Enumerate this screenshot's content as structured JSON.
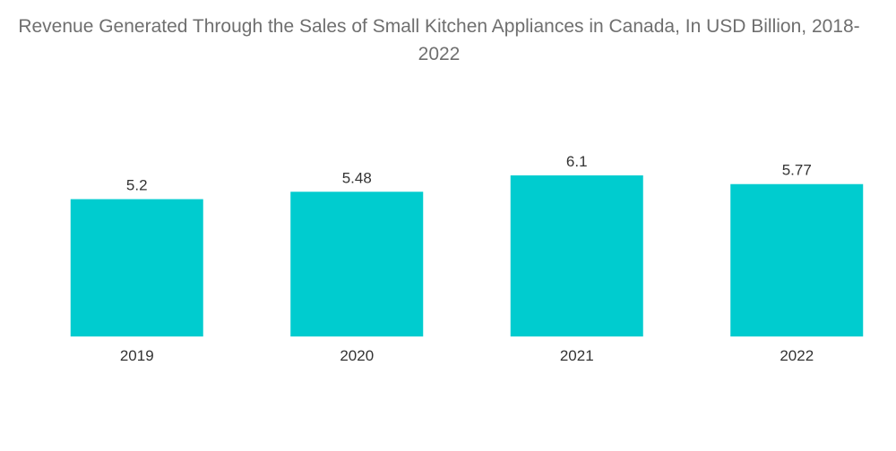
{
  "colors": {
    "bar": "#00cccf",
    "title": "#6f6f6f",
    "label": "#333333",
    "background": "#ffffff"
  },
  "chart_data": {
    "type": "bar",
    "title": "Revenue Generated Through the Sales of Small Kitchen Appliances in Canada, In USD Billion, 2018-2022",
    "xlabel": "",
    "ylabel": "",
    "categories": [
      "2019",
      "2020",
      "2021",
      "2022"
    ],
    "values": [
      5.2,
      5.48,
      6.1,
      5.77
    ],
    "value_labels": [
      "5.2",
      "5.48",
      "6.1",
      "5.77"
    ],
    "ylim": [
      0,
      6.1
    ],
    "grid": false,
    "legend": "none",
    "axes_visible": false
  }
}
